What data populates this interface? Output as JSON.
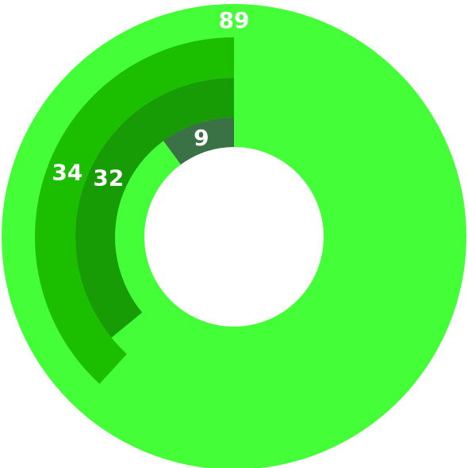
{
  "chart_data": {
    "type": "radial_bar",
    "values": [
      89,
      34,
      32,
      9
    ],
    "colors": [
      "#44ff37",
      "#1cbf00",
      "#189c06",
      "#3a7145"
    ]
  }
}
